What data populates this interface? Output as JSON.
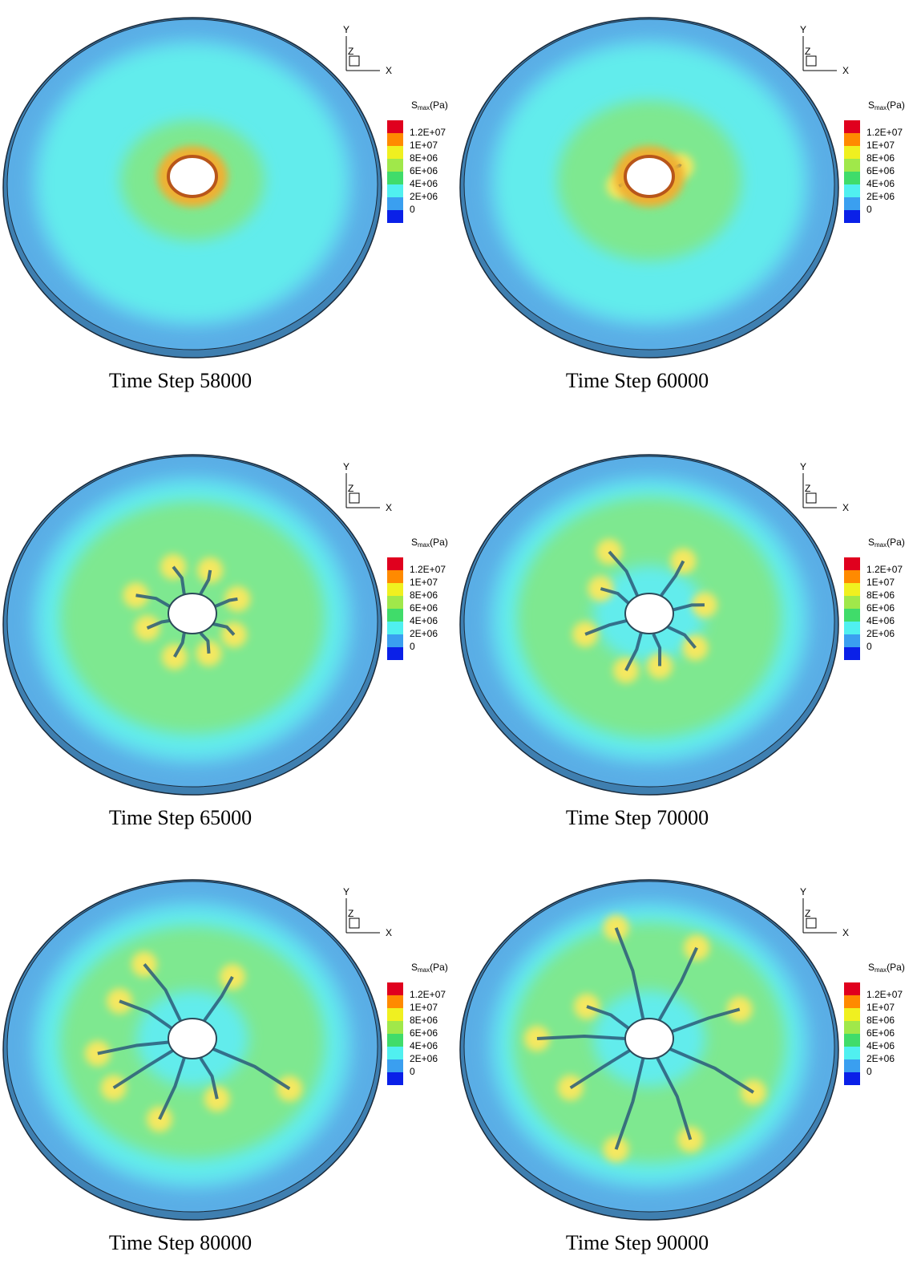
{
  "legend": {
    "symbol": "S",
    "subscript": "max",
    "unit": "(Pa)",
    "labels": [
      "1.2E+07",
      "1E+07",
      "8E+06",
      "6E+06",
      "4E+06",
      "2E+06",
      "0"
    ]
  },
  "axes": {
    "x": "X",
    "y": "Y",
    "z": "Z"
  },
  "panels": [
    {
      "caption": "Time Step 58000"
    },
    {
      "caption": "Time Step 60000"
    },
    {
      "caption": "Time Step 65000"
    },
    {
      "caption": "Time Step 70000"
    },
    {
      "caption": "Time Step 80000"
    },
    {
      "caption": "Time Step 90000"
    }
  ]
}
